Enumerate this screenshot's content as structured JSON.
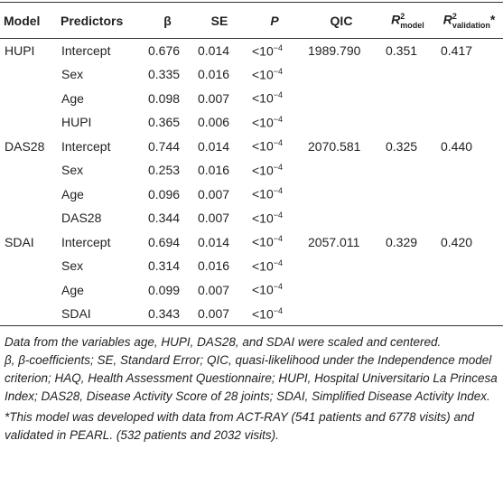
{
  "header": [
    "Model",
    "Predictors",
    "β",
    "SE",
    {
      "base": "P"
    },
    "QIC",
    {
      "base": "R",
      "sup": "2",
      "sub": "model"
    },
    {
      "base": "R",
      "sup": "2",
      "sub": "validation",
      "suffix": "*"
    }
  ],
  "groups": [
    {
      "model": "HUPI",
      "qic": "1989.790",
      "r2_model": "0.351",
      "r2_validation": "0.417",
      "rows": [
        [
          "Intercept",
          "0.676",
          "0.014",
          {
            "base": "<10",
            "sup": "−4"
          }
        ],
        [
          "Sex",
          "0.335",
          "0.016",
          {
            "base": "<10",
            "sup": "−4"
          }
        ],
        [
          "Age",
          "0.098",
          "0.007",
          {
            "base": "<10",
            "sup": "−4"
          }
        ],
        [
          "HUPI",
          "0.365",
          "0.006",
          {
            "base": "<10",
            "sup": "−4"
          }
        ]
      ]
    },
    {
      "model": "DAS28",
      "qic": "2070.581",
      "r2_model": "0.325",
      "r2_validation": "0.440",
      "rows": [
        [
          "Intercept",
          "0.744",
          "0.014",
          {
            "base": "<10",
            "sup": "−4"
          }
        ],
        [
          "Sex",
          "0.253",
          "0.016",
          {
            "base": "<10",
            "sup": "−4"
          }
        ],
        [
          "Age",
          "0.096",
          "0.007",
          {
            "base": "<10",
            "sup": "−4"
          }
        ],
        [
          "DAS28",
          "0.344",
          "0.007",
          {
            "base": "<10",
            "sup": "−4"
          }
        ]
      ]
    },
    {
      "model": "SDAI",
      "qic": "2057.011",
      "r2_model": "0.329",
      "r2_validation": "0.420",
      "rows": [
        [
          "Intercept",
          "0.694",
          "0.014",
          {
            "base": "<10",
            "sup": "−4"
          }
        ],
        [
          "Sex",
          "0.314",
          "0.016",
          {
            "base": "<10",
            "sup": "−4"
          }
        ],
        [
          "Age",
          "0.099",
          "0.007",
          {
            "base": "<10",
            "sup": "−4"
          }
        ],
        [
          "SDAI",
          "0.343",
          "0.007",
          {
            "base": "<10",
            "sup": "−4"
          }
        ]
      ]
    }
  ],
  "notes": [
    "Data from the variables age, HUPI, DAS28, and SDAI were scaled and centered.",
    "β, β-coefficients; SE, Standard Error; QIC, quasi-likelihood under the Independence model criterion; HAQ, Health Assessment Questionnaire; HUPI, Hospital Universitario La Princesa Index; DAS28, Disease Activity Score of 28 joints; SDAI, Simplified Disease Activity Index.",
    "*This model was developed with data from ACT-RAY (541 patients and 6778 visits) and validated in PEARL. (532 patients and 2032 visits)."
  ]
}
